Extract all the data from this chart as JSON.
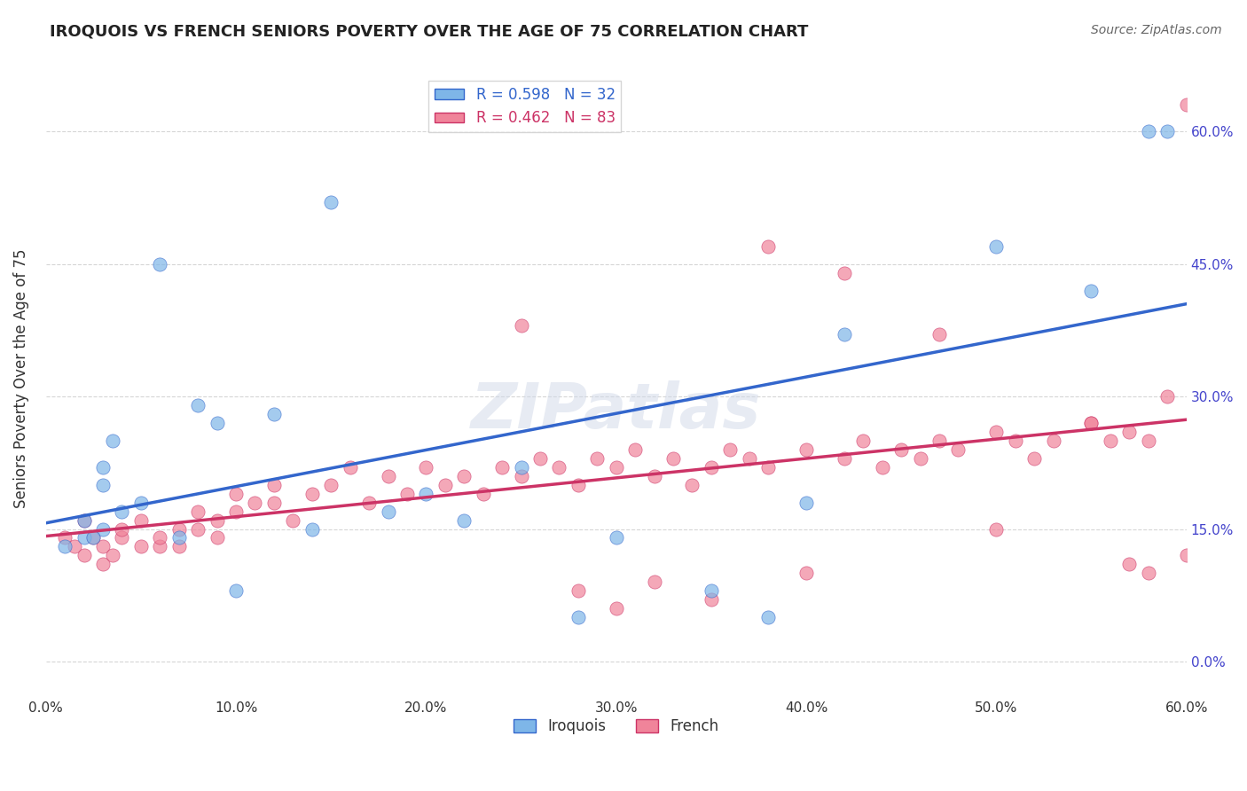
{
  "title": "IROQUOIS VS FRENCH SENIORS POVERTY OVER THE AGE OF 75 CORRELATION CHART",
  "source": "Source: ZipAtlas.com",
  "ylabel": "Seniors Poverty Over the Age of 75",
  "xlabel_ticks": [
    "0.0%",
    "10.0%",
    "20.0%",
    "30.0%",
    "40.0%",
    "50.0%",
    "60.0%"
  ],
  "ylabel_ticks": [
    "0.0%",
    "15.0%",
    "30.0%",
    "45.0%",
    "60.0%"
  ],
  "xmin": 0.0,
  "xmax": 0.6,
  "ymin": -0.04,
  "ymax": 0.68,
  "legend1_R": "0.598",
  "legend1_N": "32",
  "legend2_R": "0.462",
  "legend2_N": "83",
  "watermark": "ZIPatlas",
  "blue_color": "#7EB6E8",
  "pink_color": "#F0849A",
  "line_blue": "#3366CC",
  "line_pink": "#CC3366",
  "iroquois_x": [
    0.02,
    0.01,
    0.03,
    0.04,
    0.02,
    0.03,
    0.03,
    0.035,
    0.025,
    0.05,
    0.06,
    0.07,
    0.08,
    0.09,
    0.1,
    0.12,
    0.14,
    0.15,
    0.18,
    0.2,
    0.22,
    0.25,
    0.28,
    0.3,
    0.35,
    0.38,
    0.4,
    0.42,
    0.5,
    0.55,
    0.58,
    0.59
  ],
  "iroquois_y": [
    0.14,
    0.13,
    0.15,
    0.17,
    0.16,
    0.2,
    0.22,
    0.25,
    0.14,
    0.18,
    0.45,
    0.14,
    0.29,
    0.27,
    0.08,
    0.28,
    0.15,
    0.52,
    0.17,
    0.19,
    0.16,
    0.22,
    0.05,
    0.14,
    0.08,
    0.05,
    0.18,
    0.37,
    0.47,
    0.42,
    0.6,
    0.6
  ],
  "french_x": [
    0.01,
    0.015,
    0.02,
    0.02,
    0.025,
    0.03,
    0.03,
    0.035,
    0.04,
    0.04,
    0.05,
    0.05,
    0.06,
    0.06,
    0.07,
    0.07,
    0.08,
    0.08,
    0.09,
    0.09,
    0.1,
    0.1,
    0.11,
    0.12,
    0.12,
    0.13,
    0.14,
    0.15,
    0.16,
    0.17,
    0.18,
    0.19,
    0.2,
    0.21,
    0.22,
    0.23,
    0.24,
    0.25,
    0.26,
    0.27,
    0.28,
    0.29,
    0.3,
    0.31,
    0.32,
    0.33,
    0.34,
    0.35,
    0.36,
    0.37,
    0.38,
    0.4,
    0.42,
    0.43,
    0.44,
    0.45,
    0.46,
    0.47,
    0.48,
    0.5,
    0.51,
    0.52,
    0.53,
    0.55,
    0.56,
    0.57,
    0.58,
    0.59,
    0.6,
    0.38,
    0.42,
    0.47,
    0.5,
    0.55,
    0.57,
    0.58,
    0.3,
    0.35,
    0.4,
    0.6,
    0.25,
    0.28,
    0.32
  ],
  "french_y": [
    0.14,
    0.13,
    0.16,
    0.12,
    0.14,
    0.11,
    0.13,
    0.12,
    0.14,
    0.15,
    0.13,
    0.16,
    0.13,
    0.14,
    0.15,
    0.13,
    0.15,
    0.17,
    0.14,
    0.16,
    0.17,
    0.19,
    0.18,
    0.2,
    0.18,
    0.16,
    0.19,
    0.2,
    0.22,
    0.18,
    0.21,
    0.19,
    0.22,
    0.2,
    0.21,
    0.19,
    0.22,
    0.21,
    0.23,
    0.22,
    0.2,
    0.23,
    0.22,
    0.24,
    0.21,
    0.23,
    0.2,
    0.22,
    0.24,
    0.23,
    0.22,
    0.24,
    0.23,
    0.25,
    0.22,
    0.24,
    0.23,
    0.25,
    0.24,
    0.26,
    0.25,
    0.23,
    0.25,
    0.27,
    0.25,
    0.26,
    0.25,
    0.3,
    0.12,
    0.47,
    0.44,
    0.37,
    0.15,
    0.27,
    0.11,
    0.1,
    0.06,
    0.07,
    0.1,
    0.63,
    0.38,
    0.08,
    0.09
  ]
}
